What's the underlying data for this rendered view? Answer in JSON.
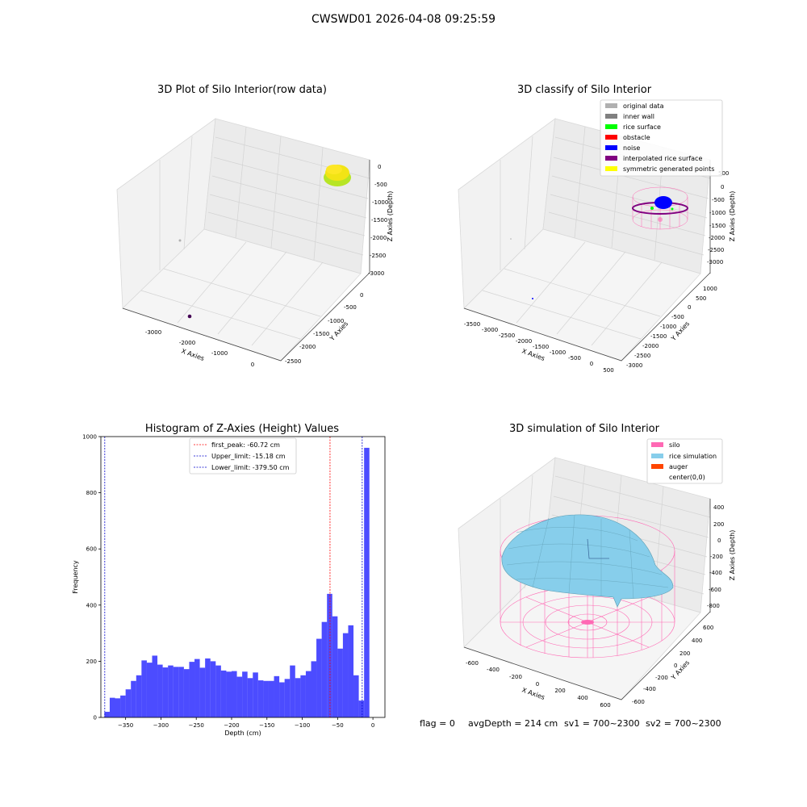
{
  "header": {
    "title": "CWSWD01 2026-04-08 09:25:59"
  },
  "plot1": {
    "title": "3D Plot of Silo Interior(row data)",
    "xlabel": "X Axies",
    "ylabel": "Y Axies",
    "zlabel": "Z Axies (Depth)",
    "xticks": [
      "-3000",
      "-2000",
      "-1000",
      "0"
    ],
    "yticks": [
      "0",
      "-500",
      "-1000",
      "-1500",
      "-2000",
      "-2500"
    ],
    "zticks": [
      "0",
      "-500",
      "-1000",
      "-1500",
      "-2000",
      "-2500",
      "-3000"
    ],
    "colors": {
      "cloud": "#f2e415",
      "cloud_edge": "#b7e526",
      "outlier": "#440154",
      "faint": "#b0b0b0"
    }
  },
  "plot2": {
    "title": "3D classify of Silo Interior",
    "xlabel": "X Axies",
    "ylabel": "Y Axies",
    "zlabel": "Z Axies (Depth)",
    "xticks": [
      "-3500",
      "-3000",
      "-2500",
      "-2000",
      "-1500",
      "-1000",
      "-500",
      "0",
      "500"
    ],
    "yticks": [
      "1000",
      "500",
      "0",
      "-500",
      "-1000",
      "-1500",
      "-2000",
      "-2500",
      "-3000"
    ],
    "zticks": [
      "500",
      "0",
      "-500",
      "-1000",
      "-1500",
      "-2000",
      "-2500",
      "-3000"
    ],
    "legend": [
      {
        "label": "original data",
        "color": "#b0b0b0"
      },
      {
        "label": "inner wall",
        "color": "#808080"
      },
      {
        "label": "rice surface",
        "color": "#00ff00"
      },
      {
        "label": "obstacle",
        "color": "#ff0000"
      },
      {
        "label": "noise",
        "color": "#0000ff"
      },
      {
        "label": "interpolated rice surface",
        "color": "#800080"
      },
      {
        "label": "symmetric generated points",
        "color": "#ffff00"
      }
    ]
  },
  "chart_data": [
    {
      "type": "scatter",
      "title": "3D Plot of Silo Interior(row data)",
      "xlabel": "X Axies",
      "ylabel": "Y Axies",
      "zlabel": "Z Axies (Depth)"
    },
    {
      "type": "scatter",
      "title": "3D classify of Silo Interior",
      "xlabel": "X Axies",
      "ylabel": "Y Axies",
      "zlabel": "Z Axies (Depth)"
    },
    {
      "type": "bar",
      "title": "Histogram of Z-Axies (Height) Values",
      "xlabel": "Depth (cm)",
      "ylabel": "Frequency",
      "xlim": [
        -385,
        17
      ],
      "ylim": [
        0,
        1000
      ],
      "bin_width": 7.5,
      "bins_start": -380,
      "values": [
        20,
        70,
        68,
        78,
        100,
        130,
        150,
        203,
        195,
        220,
        188,
        178,
        185,
        180,
        180,
        172,
        198,
        208,
        177,
        210,
        200,
        185,
        167,
        163,
        165,
        145,
        163,
        140,
        160,
        132,
        130,
        130,
        147,
        125,
        137,
        185,
        140,
        150,
        165,
        200,
        280,
        340,
        440,
        360,
        245,
        300,
        328,
        150,
        60,
        960
      ],
      "color": "#0000ff",
      "lines": [
        {
          "label": "first_peak: -60.72 cm",
          "value": -60.72,
          "color": "#ff0000"
        },
        {
          "label": "Upper_limit: -15.18 cm",
          "value": -15.18,
          "color": "#0000cc"
        },
        {
          "label": "Lower_limit: -379.50 cm",
          "value": -379.5,
          "color": "#0000cc"
        }
      ],
      "xticks": [
        -350,
        -300,
        -250,
        -200,
        -150,
        -100,
        -50,
        0
      ],
      "yticks": [
        0,
        200,
        400,
        600,
        800,
        1000
      ]
    },
    {
      "type": "surface",
      "title": "3D simulation of Silo Interior",
      "xlabel": "X Axies",
      "ylabel": "Y Axies",
      "zlabel": "Z Axies (Depth)"
    }
  ],
  "hist": {
    "title": "Histogram of Z-Axies (Height) Values",
    "xlabel": "Depth (cm)",
    "ylabel": "Frequency",
    "xticklabels": [
      "−350",
      "−300",
      "−250",
      "−200",
      "−150",
      "−100",
      "−50",
      "0"
    ],
    "yticklabels": [
      "0",
      "200",
      "400",
      "600",
      "800",
      "1000"
    ],
    "legend": [
      "first_peak: -60.72 cm",
      "Upper_limit: -15.18 cm",
      "Lower_limit: -379.50 cm"
    ]
  },
  "plot4": {
    "title": "3D simulation of Silo Interior",
    "xlabel": "X Axies",
    "ylabel": "Y Axies",
    "zlabel": "Z Axies (Depth)",
    "xticks": [
      "-600",
      "-400",
      "-200",
      "0",
      "200",
      "400",
      "600"
    ],
    "yticks": [
      "600",
      "400",
      "200",
      "0",
      "-200",
      "-400",
      "-600"
    ],
    "zticks": [
      "400",
      "200",
      "0",
      "-200",
      "-400",
      "-600",
      "-800"
    ],
    "legend": [
      {
        "label": "silo",
        "color": "#ff69b4"
      },
      {
        "label": "rice simulation",
        "color": "#87ceeb"
      },
      {
        "label": "auger",
        "color": "#ff4500"
      },
      {
        "label": "center(0,0)",
        "color": ""
      }
    ]
  },
  "footer": {
    "flag": "flag = 0",
    "avg": "avgDepth = 214 cm",
    "sv1": "sv1 = 700~2300",
    "sv2": "sv2 = 700~2300"
  }
}
